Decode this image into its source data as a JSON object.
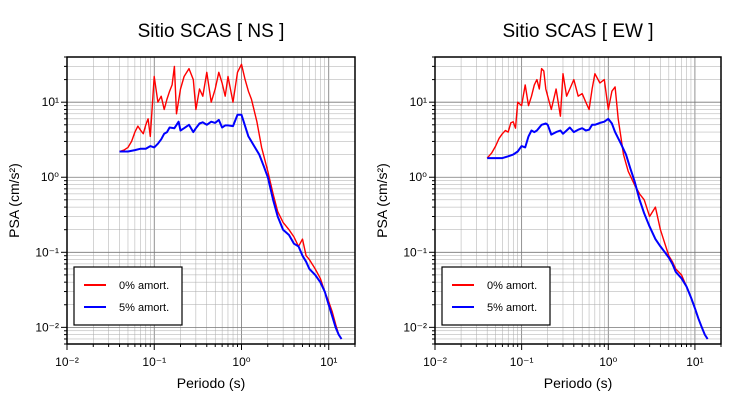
{
  "chart_data": [
    {
      "type": "line",
      "title": "Sitio SCAS [ NS ]",
      "xlabel": "Periodo (s)",
      "ylabel": "PSA (cm/s²)",
      "x_scale": "log",
      "y_scale": "log",
      "xlim": [
        0.01,
        20
      ],
      "ylim": [
        0.006,
        40
      ],
      "x_ticks": [
        {
          "value": 0.01,
          "label": "10⁻²"
        },
        {
          "value": 0.1,
          "label": "10⁻¹"
        },
        {
          "value": 1,
          "label": "10⁰"
        },
        {
          "value": 10,
          "label": "10¹"
        }
      ],
      "y_ticks": [
        {
          "value": 0.01,
          "label": "10⁻²"
        },
        {
          "value": 0.1,
          "label": "10⁻¹"
        },
        {
          "value": 1,
          "label": "10⁰"
        },
        {
          "value": 10,
          "label": "10¹"
        }
      ],
      "grid": true,
      "legend_position": "bottom-left",
      "series": [
        {
          "name": "0% amort.",
          "color": "#ff0000",
          "x": [
            0.04,
            0.045,
            0.05,
            0.055,
            0.06,
            0.065,
            0.07,
            0.075,
            0.08,
            0.085,
            0.09,
            0.1,
            0.11,
            0.12,
            0.13,
            0.14,
            0.15,
            0.16,
            0.17,
            0.18,
            0.2,
            0.22,
            0.25,
            0.28,
            0.3,
            0.33,
            0.36,
            0.4,
            0.45,
            0.5,
            0.55,
            0.6,
            0.65,
            0.7,
            0.8,
            0.9,
            1.0,
            1.1,
            1.2,
            1.3,
            1.5,
            1.7,
            2.0,
            2.3,
            2.6,
            3.0,
            3.5,
            4.0,
            4.5,
            5.0,
            5.5,
            6.0,
            7.0,
            8.0,
            9.0,
            10.0,
            11.0,
            12.0,
            13.0,
            14.0
          ],
          "y": [
            2.2,
            2.3,
            2.5,
            3.0,
            4.0,
            4.8,
            4.2,
            3.8,
            5.0,
            6.0,
            3.5,
            22.0,
            10.0,
            12.0,
            8.0,
            11.0,
            14.0,
            17.0,
            30.0,
            7.0,
            15.0,
            22.0,
            28.0,
            20.0,
            8.0,
            15.0,
            12.0,
            25.0,
            10.0,
            15.0,
            25.0,
            18.0,
            12.0,
            22.0,
            10.0,
            25.0,
            32.0,
            20.0,
            14.0,
            11.0,
            5.5,
            2.5,
            1.2,
            0.6,
            0.35,
            0.25,
            0.2,
            0.16,
            0.12,
            0.15,
            0.09,
            0.08,
            0.06,
            0.045,
            0.03,
            0.022,
            0.016,
            0.011,
            0.008,
            0.007
          ]
        },
        {
          "name": "5% amort.",
          "color": "#0000ff",
          "x": [
            0.04,
            0.05,
            0.06,
            0.07,
            0.08,
            0.09,
            0.1,
            0.11,
            0.12,
            0.13,
            0.14,
            0.15,
            0.17,
            0.19,
            0.2,
            0.22,
            0.25,
            0.28,
            0.3,
            0.33,
            0.36,
            0.4,
            0.45,
            0.5,
            0.55,
            0.6,
            0.65,
            0.7,
            0.8,
            0.9,
            1.0,
            1.1,
            1.2,
            1.4,
            1.6,
            1.8,
            2.0,
            2.3,
            2.6,
            3.0,
            3.5,
            4.0,
            4.5,
            5.0,
            5.5,
            6.0,
            7.0,
            8.0,
            9.0,
            10.0,
            11.0,
            12.0,
            13.0,
            14.0
          ],
          "y": [
            2.2,
            2.2,
            2.3,
            2.4,
            2.4,
            2.6,
            2.5,
            2.8,
            3.2,
            3.8,
            4.0,
            4.6,
            4.5,
            5.5,
            4.2,
            4.5,
            5.0,
            4.0,
            4.5,
            5.2,
            5.4,
            5.0,
            5.5,
            5.3,
            5.8,
            4.6,
            4.9,
            4.9,
            4.8,
            6.8,
            6.8,
            4.8,
            3.5,
            2.6,
            2.0,
            1.4,
            1.0,
            0.5,
            0.3,
            0.2,
            0.17,
            0.13,
            0.12,
            0.09,
            0.075,
            0.06,
            0.05,
            0.04,
            0.03,
            0.02,
            0.014,
            0.01,
            0.008,
            0.007
          ]
        }
      ]
    },
    {
      "type": "line",
      "title": "Sitio SCAS [ EW ]",
      "xlabel": "Periodo (s)",
      "ylabel": "PSA (cm/s²)",
      "x_scale": "log",
      "y_scale": "log",
      "xlim": [
        0.01,
        20
      ],
      "ylim": [
        0.006,
        40
      ],
      "x_ticks": [
        {
          "value": 0.01,
          "label": "10⁻²"
        },
        {
          "value": 0.1,
          "label": "10⁻¹"
        },
        {
          "value": 1,
          "label": "10⁰"
        },
        {
          "value": 10,
          "label": "10¹"
        }
      ],
      "y_ticks": [
        {
          "value": 0.01,
          "label": "10⁻²"
        },
        {
          "value": 0.1,
          "label": "10⁻¹"
        },
        {
          "value": 1,
          "label": "10⁰"
        },
        {
          "value": 10,
          "label": "10¹"
        }
      ],
      "grid": true,
      "legend_position": "bottom-left",
      "series": [
        {
          "name": "0% amort.",
          "color": "#ff0000",
          "x": [
            0.04,
            0.045,
            0.05,
            0.055,
            0.06,
            0.065,
            0.07,
            0.075,
            0.08,
            0.085,
            0.09,
            0.1,
            0.11,
            0.12,
            0.13,
            0.14,
            0.15,
            0.16,
            0.17,
            0.18,
            0.19,
            0.2,
            0.22,
            0.25,
            0.28,
            0.3,
            0.33,
            0.36,
            0.4,
            0.45,
            0.5,
            0.55,
            0.6,
            0.65,
            0.7,
            0.8,
            0.9,
            1.0,
            1.1,
            1.2,
            1.3,
            1.5,
            1.7,
            2.0,
            2.3,
            2.6,
            3.0,
            3.5,
            4.0,
            4.5,
            5.0,
            5.5,
            6.0,
            7.0,
            8.0,
            9.0,
            10.0,
            11.0,
            12.0,
            13.0,
            14.0
          ],
          "y": [
            1.8,
            2.1,
            2.6,
            3.3,
            3.8,
            4.2,
            4.0,
            5.3,
            5.5,
            4.5,
            10.0,
            9.0,
            17.0,
            9.0,
            12.0,
            17.0,
            20.0,
            15.0,
            28.0,
            26.0,
            15.0,
            12.0,
            8.0,
            15.0,
            6.5,
            24.0,
            12.0,
            15.0,
            20.0,
            12.0,
            13.0,
            10.0,
            8.0,
            15.0,
            24.0,
            18.0,
            20.0,
            8.0,
            14.0,
            16.0,
            6.0,
            2.0,
            1.2,
            0.8,
            0.6,
            0.5,
            0.3,
            0.4,
            0.2,
            0.13,
            0.09,
            0.075,
            0.06,
            0.05,
            0.035,
            0.025,
            0.018,
            0.013,
            0.01,
            0.008,
            0.007
          ]
        },
        {
          "name": "5% amort.",
          "color": "#0000ff",
          "x": [
            0.04,
            0.05,
            0.06,
            0.07,
            0.08,
            0.09,
            0.1,
            0.11,
            0.12,
            0.13,
            0.14,
            0.15,
            0.17,
            0.19,
            0.2,
            0.22,
            0.25,
            0.28,
            0.3,
            0.33,
            0.36,
            0.4,
            0.45,
            0.5,
            0.55,
            0.6,
            0.65,
            0.7,
            0.8,
            0.9,
            1.0,
            1.1,
            1.2,
            1.4,
            1.6,
            1.8,
            2.0,
            2.3,
            2.6,
            3.0,
            3.5,
            4.0,
            4.5,
            5.0,
            5.5,
            6.0,
            7.0,
            8.0,
            9.0,
            10.0,
            11.0,
            12.0,
            13.0,
            14.0
          ],
          "y": [
            1.8,
            1.8,
            1.8,
            1.9,
            2.0,
            2.2,
            2.6,
            2.5,
            3.5,
            4.2,
            4.0,
            4.2,
            5.0,
            5.2,
            5.0,
            3.7,
            4.0,
            4.2,
            3.8,
            4.2,
            4.6,
            4.0,
            4.3,
            4.5,
            4.2,
            4.3,
            5.0,
            5.0,
            5.3,
            5.5,
            6.0,
            5.2,
            4.0,
            2.8,
            2.0,
            1.3,
            0.9,
            0.5,
            0.33,
            0.22,
            0.15,
            0.12,
            0.1,
            0.085,
            0.07,
            0.055,
            0.045,
            0.035,
            0.025,
            0.018,
            0.013,
            0.01,
            0.008,
            0.007
          ]
        }
      ]
    }
  ]
}
